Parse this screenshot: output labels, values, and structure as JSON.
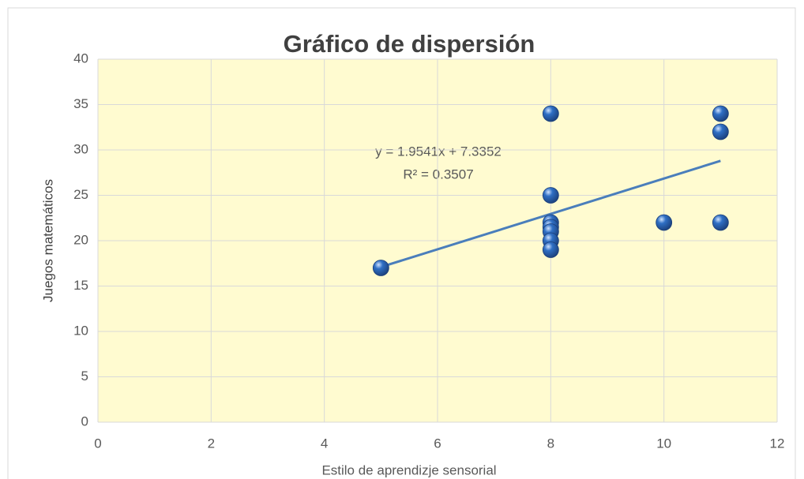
{
  "chart_data": {
    "type": "scatter",
    "title": "Gráfico de dispersión",
    "xlabel": "Estilo de aprendizje sensorial",
    "ylabel": "Juegos matemáticos",
    "annotations": [
      "y = 1.9541x + 7.3352",
      "R² = 0.3507"
    ],
    "x": [
      5,
      8,
      8,
      8,
      8,
      8,
      8,
      8,
      10,
      11,
      11,
      11
    ],
    "values": [
      17,
      34,
      25,
      22,
      21.5,
      21,
      20,
      19,
      22,
      34,
      32,
      22
    ],
    "color": "#2f6fc4",
    "trendline": {
      "x": [
        5,
        11
      ],
      "values": [
        17.1,
        28.8
      ],
      "color": "#4a7ebb"
    },
    "xlim": [
      0,
      12
    ],
    "xticks": [
      0,
      2,
      4,
      6,
      8,
      10,
      12
    ],
    "ylim": [
      0,
      40
    ],
    "yticks": [
      0,
      5,
      10,
      15,
      20,
      25,
      30,
      35,
      40
    ],
    "grid": true
  }
}
